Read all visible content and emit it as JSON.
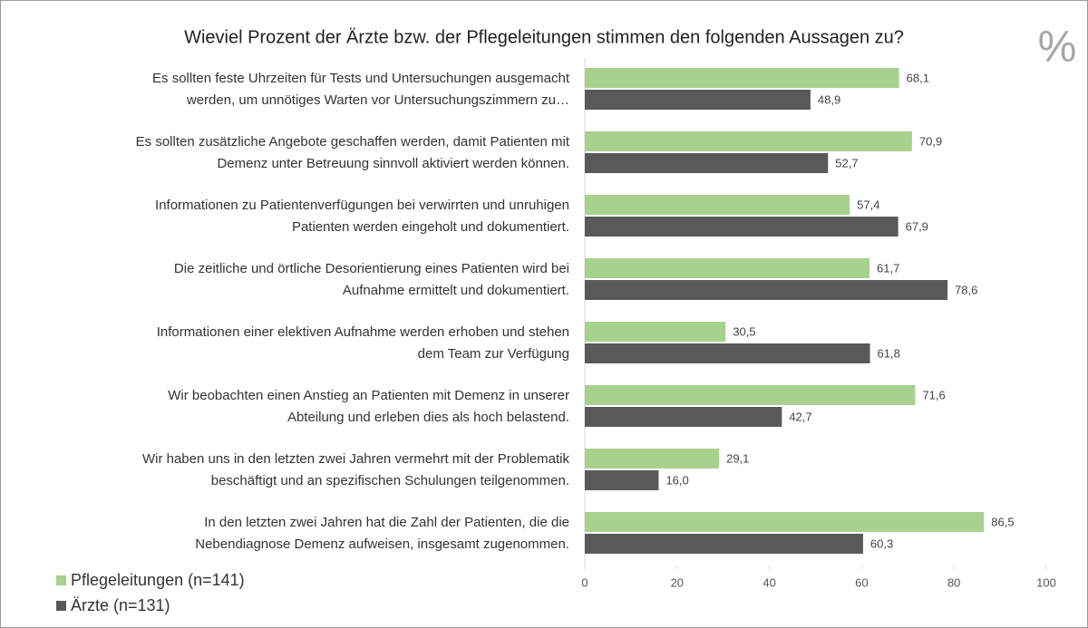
{
  "chart_data": {
    "type": "hbar",
    "title": "Wieviel Prozent der Ärzte bzw. der Pflegeleitungen stimmen den folgenden Aussagen zu?",
    "annotation": "%",
    "categories": [
      [
        "Es sollten feste Uhrzeiten für Tests und Untersuchungen ausgemacht",
        "werden, um unnötiges Warten vor Untersuchungszimmern zu…"
      ],
      [
        "Es sollten zusätzliche Angebote geschaffen werden, damit Patienten mit",
        "Demenz unter Betreuung sinnvoll aktiviert werden können."
      ],
      [
        "Informationen zu Patientenverfügungen bei verwirrten und unruhigen",
        "Patienten werden eingeholt und dokumentiert."
      ],
      [
        "Die zeitliche und örtliche Desorientierung eines Patienten wird bei",
        "Aufnahme ermittelt und dokumentiert."
      ],
      [
        "Informationen einer elektiven Aufnahme werden erhoben und stehen",
        "dem Team zur Verfügung"
      ],
      [
        "Wir beobachten einen Anstieg an Patienten mit Demenz in unserer",
        "Abteilung und erleben dies als hoch belastend."
      ],
      [
        "Wir haben uns in den letzten zwei Jahren vermehrt mit der Problematik",
        "beschäftigt und an spezifischen Schulungen teilgenommen."
      ],
      [
        "In den letzten zwei Jahren  hat die Zahl der Patienten, die die",
        "Nebendiagnose Demenz aufweisen, insgesamt zugenommen."
      ]
    ],
    "series": [
      {
        "name": "Pflegeleitungen (n=141)",
        "color": "#a9d18e",
        "values": [
          68.1,
          70.9,
          57.4,
          61.7,
          30.5,
          71.6,
          29.1,
          86.5
        ],
        "value_labels": [
          "68,1",
          "70,9",
          "57,4",
          "61,7",
          "30,5",
          "71,6",
          "29,1",
          "86,5"
        ]
      },
      {
        "name": "Ärzte (n=131)",
        "color": "#595959",
        "values": [
          48.9,
          52.7,
          67.9,
          78.6,
          61.8,
          42.7,
          16.0,
          60.3
        ],
        "value_labels": [
          "48,9",
          "52,7",
          "67,9",
          "78,6",
          "61,8",
          "42,7",
          "16,0",
          "60,3"
        ]
      }
    ],
    "xlim": [
      0,
      100
    ],
    "xticks": [
      0,
      20,
      40,
      60,
      80,
      100
    ],
    "legend": "bottom-left"
  }
}
